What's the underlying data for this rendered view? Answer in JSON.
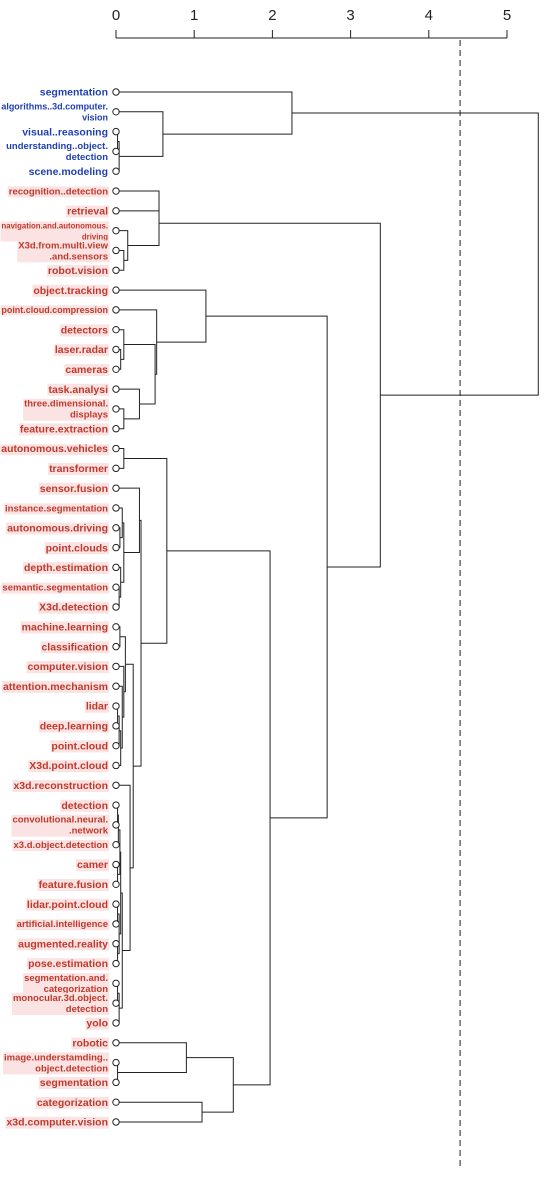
{
  "chart_data": {
    "type": "dendrogram",
    "orientation": "horizontal",
    "x_axis": {
      "ticks": [
        0,
        1,
        2,
        3,
        4,
        5
      ],
      "range": [
        0,
        5
      ],
      "position": "top"
    },
    "cut_line": 4.4,
    "colors": {
      "blue": "#1f3fb4",
      "red": "#c0392b",
      "highlight": "#fbe3e3",
      "line": "#222222"
    },
    "leaves": [
      {
        "label": "segmentation",
        "color": "blue"
      },
      {
        "label": "algorithms..3d.computer.\nvision",
        "color": "blue"
      },
      {
        "label": "visual..reasoning",
        "color": "blue"
      },
      {
        "label": "understanding..object.\ndetection",
        "color": "blue"
      },
      {
        "label": "scene.modeling",
        "color": "blue"
      },
      {
        "label": "recognition..detection",
        "color": "red"
      },
      {
        "label": "retrieval",
        "color": "red"
      },
      {
        "label": "navigation.and.autonomous.\ndriving",
        "color": "red"
      },
      {
        "label": "X3d.from.multi.view\n.and.sensors",
        "color": "red"
      },
      {
        "label": "robot.vision",
        "color": "red"
      },
      {
        "label": "object.tracking",
        "color": "red"
      },
      {
        "label": "point.cloud.compression",
        "color": "red"
      },
      {
        "label": "detectors",
        "color": "red"
      },
      {
        "label": "laser.radar",
        "color": "red"
      },
      {
        "label": "cameras",
        "color": "red"
      },
      {
        "label": "task.analysi",
        "color": "red"
      },
      {
        "label": "three.dimensional.\ndisplays",
        "color": "red"
      },
      {
        "label": "feature.extraction",
        "color": "red"
      },
      {
        "label": "autonomous.vehicles",
        "color": "red"
      },
      {
        "label": "transformer",
        "color": "red"
      },
      {
        "label": "sensor.fusion",
        "color": "red"
      },
      {
        "label": "instance.segmentation",
        "color": "red"
      },
      {
        "label": "autonomous.driving",
        "color": "red"
      },
      {
        "label": "point.clouds",
        "color": "red"
      },
      {
        "label": "depth.estimation",
        "color": "red"
      },
      {
        "label": "semantic.segmentation",
        "color": "red"
      },
      {
        "label": "X3d.detection",
        "color": "red"
      },
      {
        "label": "machine.learning",
        "color": "red"
      },
      {
        "label": "classification",
        "color": "red"
      },
      {
        "label": "computer.vision",
        "color": "red"
      },
      {
        "label": "attention.mechanism",
        "color": "red"
      },
      {
        "label": "lidar",
        "color": "red"
      },
      {
        "label": "deep.learning",
        "color": "red"
      },
      {
        "label": "point.cloud",
        "color": "red"
      },
      {
        "label": "X3d.point.cloud",
        "color": "red"
      },
      {
        "label": "x3d.reconstruction",
        "color": "red"
      },
      {
        "label": "detection",
        "color": "red"
      },
      {
        "label": "convolutional.neural.\n.network",
        "color": "red"
      },
      {
        "label": "x3.d.object.detection",
        "color": "red"
      },
      {
        "label": "camer",
        "color": "red"
      },
      {
        "label": "feature.fusion",
        "color": "red"
      },
      {
        "label": "lidar.point.cloud",
        "color": "red"
      },
      {
        "label": "artificial.intelligence",
        "color": "red"
      },
      {
        "label": "augmented.reality",
        "color": "red"
      },
      {
        "label": "pose.estimation",
        "color": "red"
      },
      {
        "label": "segmentation.and.\ncategorization",
        "color": "red"
      },
      {
        "label": "monocular.3d.object.\ndetection",
        "color": "red"
      },
      {
        "label": "yolo",
        "color": "red"
      },
      {
        "label": "robotic",
        "color": "red"
      },
      {
        "label": "image.understamding..\nobject.detection",
        "color": "red"
      },
      {
        "label": "segmentation",
        "color": "red"
      },
      {
        "label": "categorization",
        "color": "red"
      },
      {
        "label": "x3d.computer.vision",
        "color": "red"
      }
    ],
    "merges": [
      {
        "a": 2,
        "b": 3,
        "h": 0.02
      },
      {
        "a": "m0",
        "b": 4,
        "h": 0.04
      },
      {
        "a": 1,
        "b": "m1",
        "h": 0.6
      },
      {
        "a": 0,
        "b": "m2",
        "h": 2.25
      },
      {
        "a": 5,
        "b": 6,
        "h": 0.55
      },
      {
        "a": 8,
        "b": 9,
        "h": 0.1
      },
      {
        "a": 7,
        "b": "m5",
        "h": 0.15
      },
      {
        "a": "m4",
        "b": "m6",
        "h": 0.55
      },
      {
        "a": 13,
        "b": 14,
        "h": 0.06
      },
      {
        "a": 12,
        "b": "m8",
        "h": 0.1
      },
      {
        "a": 16,
        "b": 17,
        "h": 0.1
      },
      {
        "a": 15,
        "b": "m10",
        "h": 0.3
      },
      {
        "a": "m9",
        "b": "m11",
        "h": 0.5
      },
      {
        "a": 11,
        "b": "m12",
        "h": 0.52
      },
      {
        "a": 10,
        "b": "m13",
        "h": 1.15
      },
      {
        "a": 18,
        "b": 19,
        "h": 0.1
      },
      {
        "a": 22,
        "b": 23,
        "h": 0.05
      },
      {
        "a": 21,
        "b": "m16",
        "h": 0.08
      },
      {
        "a": 25,
        "b": 26,
        "h": 0.04
      },
      {
        "a": 24,
        "b": "m18",
        "h": 0.06
      },
      {
        "a": "m17",
        "b": "m19",
        "h": 0.1
      },
      {
        "a": 20,
        "b": "m20",
        "h": 0.3
      },
      {
        "a": 27,
        "b": 28,
        "h": 0.05
      },
      {
        "a": 31,
        "b": 32,
        "h": 0.02
      },
      {
        "a": "m23",
        "b": 33,
        "h": 0.04
      },
      {
        "a": "m24",
        "b": 34,
        "h": 0.06
      },
      {
        "a": 30,
        "b": "m25",
        "h": 0.08
      },
      {
        "a": 29,
        "b": "m26",
        "h": 0.1
      },
      {
        "a": "m22",
        "b": "m27",
        "h": 0.12
      },
      {
        "a": 36,
        "b": 37,
        "h": 0.02
      },
      {
        "a": "m29",
        "b": 38,
        "h": 0.03
      },
      {
        "a": 39,
        "b": 40,
        "h": 0.02
      },
      {
        "a": "m30",
        "b": "m31",
        "h": 0.05
      },
      {
        "a": 41,
        "b": 42,
        "h": 0.02
      },
      {
        "a": 43,
        "b": 44,
        "h": 0.02
      },
      {
        "a": "m33",
        "b": "m34",
        "h": 0.04
      },
      {
        "a": "m32",
        "b": "m35",
        "h": 0.06
      },
      {
        "a": 45,
        "b": 46,
        "h": 0.02
      },
      {
        "a": "m37",
        "b": 47,
        "h": 0.04
      },
      {
        "a": "m36",
        "b": "m38",
        "h": 0.08
      },
      {
        "a": 35,
        "b": "m39",
        "h": 0.18
      },
      {
        "a": "m28",
        "b": "m40",
        "h": 0.22
      },
      {
        "a": "m21",
        "b": "m41",
        "h": 0.32
      },
      {
        "a": "m15",
        "b": "m42",
        "h": 0.65
      },
      {
        "a": 49,
        "b": 50,
        "h": 0.02
      },
      {
        "a": 48,
        "b": "m44",
        "h": 0.9
      },
      {
        "a": 51,
        "b": 52,
        "h": 1.1
      },
      {
        "a": "m45",
        "b": "m46",
        "h": 1.5
      },
      {
        "a": "m43",
        "b": "m47",
        "h": 1.97
      },
      {
        "a": "m14",
        "b": "m48",
        "h": 2.7
      },
      {
        "a": "m7",
        "b": "m49",
        "h": 3.38
      },
      {
        "a": "m3",
        "b": "m50",
        "h": 5.4
      }
    ]
  }
}
